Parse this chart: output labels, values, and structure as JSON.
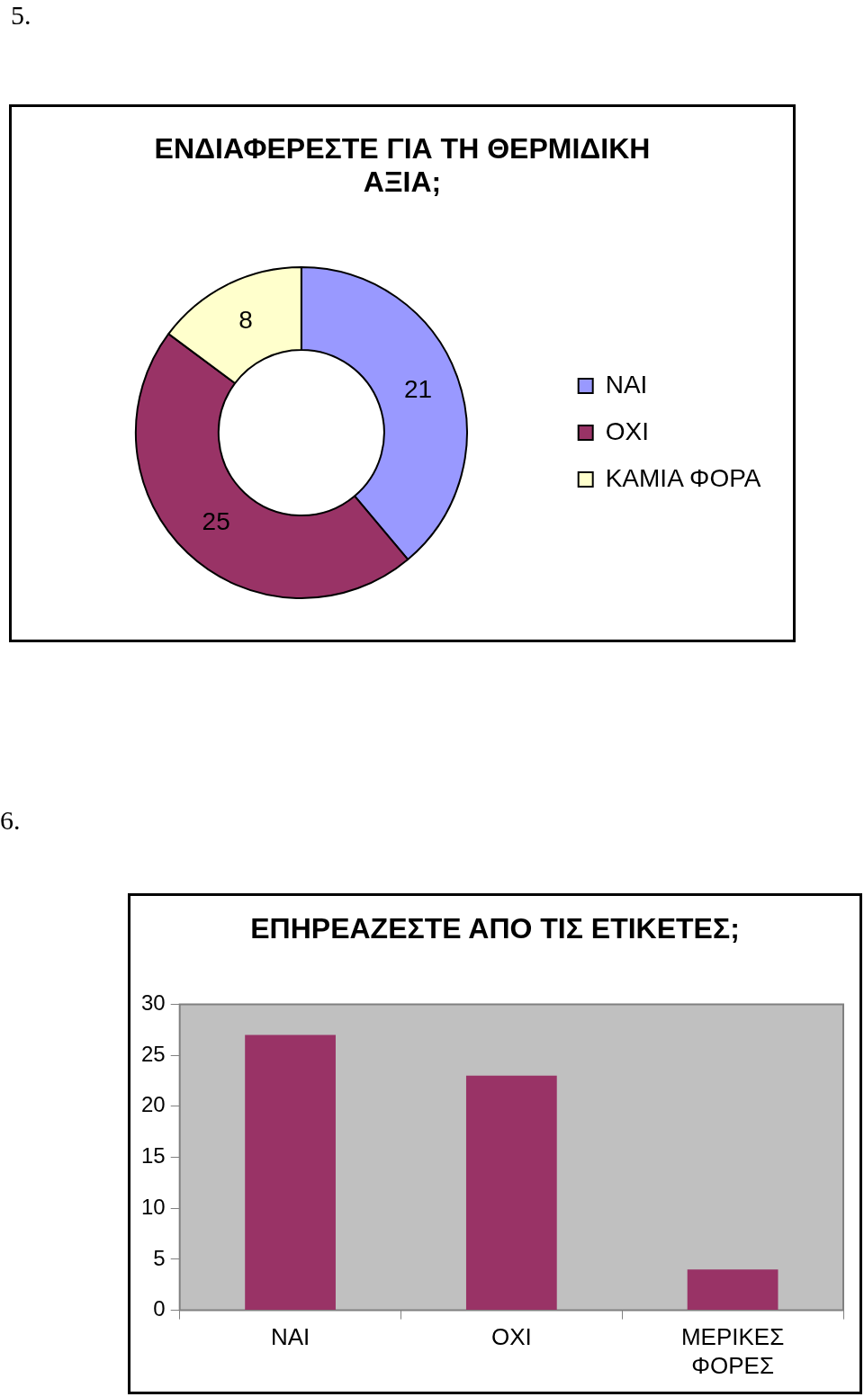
{
  "chart_data": [
    {
      "type": "donut",
      "title": "ΕΝΔΙΑΦΕΡΕΣΤΕ ΓΙΑ ΤΗ ΘΕΡΜΙΔΙΚΗ ΑΞΙΑ;",
      "categories": [
        "ΝΑΙ",
        "ΟΧΙ",
        "ΚΑΜΙΑ ΦΟΡΑ"
      ],
      "values": [
        21,
        25,
        8
      ],
      "colors": [
        "#9999ff",
        "#993366",
        "#ffffcc"
      ],
      "data_labels": true,
      "legend": "right",
      "annotations": [
        "5."
      ]
    },
    {
      "type": "bar",
      "title": "ΕΠΗΡΕΑΖΕΣΤΕ ΑΠΟ ΤΙΣ ΕΤΙΚΕΤΕΣ;",
      "categories": [
        "ΝΑΙ",
        "ΟΧΙ",
        "ΜΕΡΙΚΕΣ ΦΟΡΕΣ"
      ],
      "values": [
        27,
        23,
        4
      ],
      "color": "#993366",
      "ylim": [
        0,
        30
      ],
      "yticks": [
        0,
        5,
        10,
        15,
        20,
        25,
        30
      ],
      "grid": false,
      "annotations": [
        "6."
      ]
    }
  ]
}
